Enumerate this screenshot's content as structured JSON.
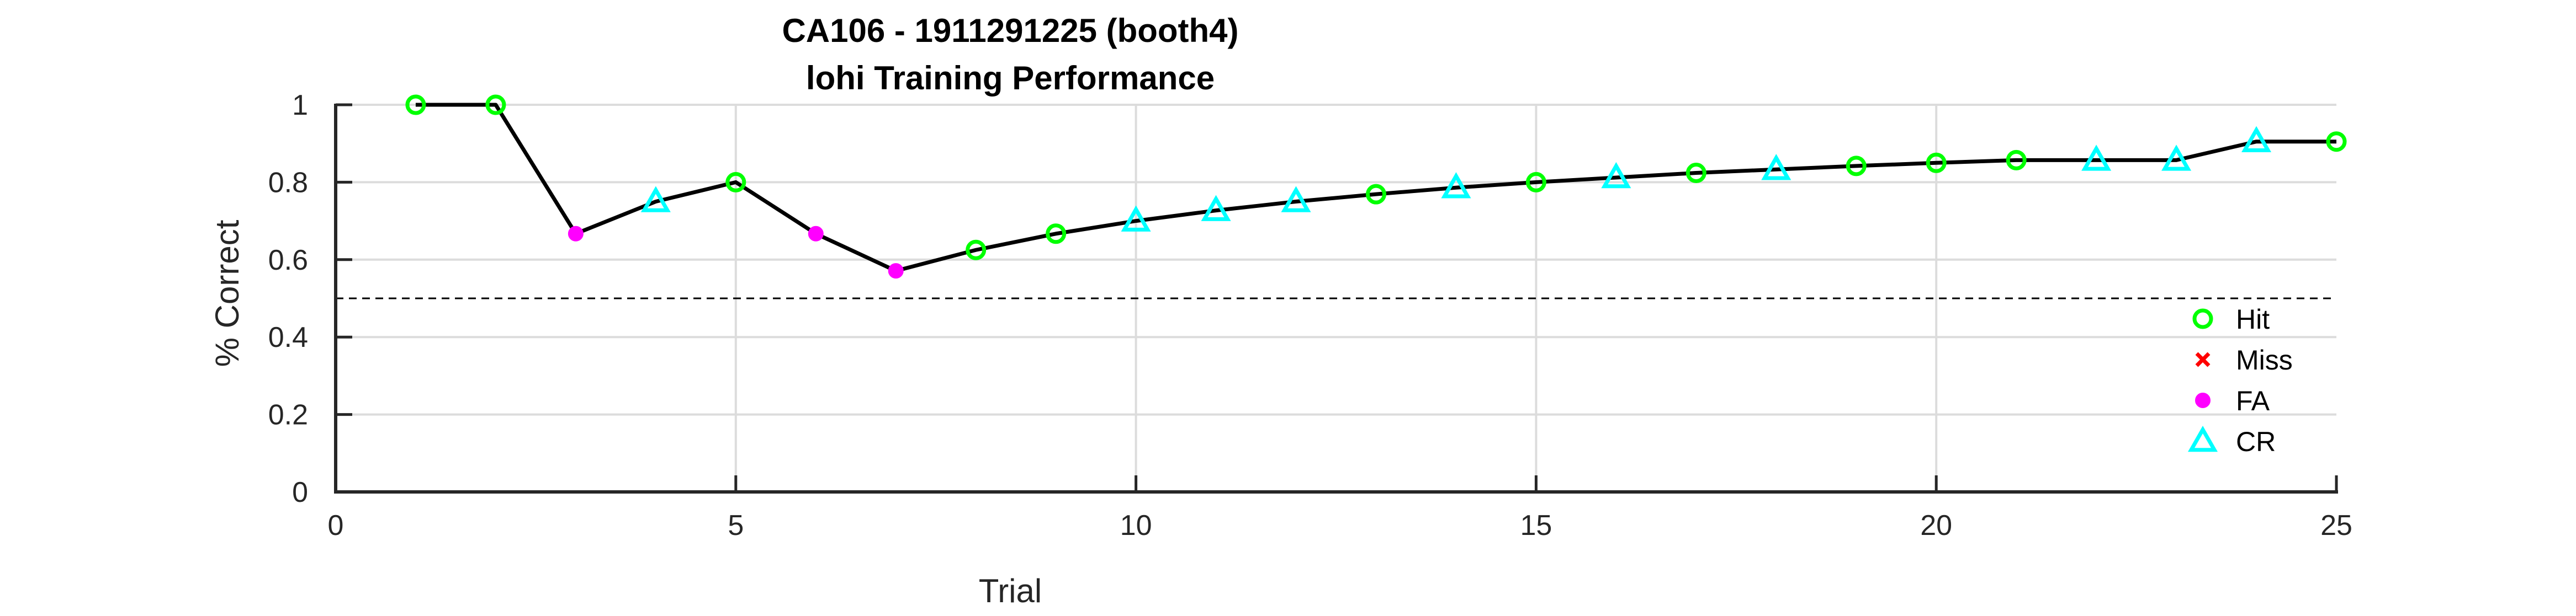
{
  "chart_data": {
    "type": "line",
    "title_line1": "CA106 - 1911291225 (booth4)",
    "title_line2": "lohi Training Performance",
    "xlabel": "Trial",
    "ylabel": "% Correct",
    "xlim": [
      0,
      25
    ],
    "ylim": [
      0,
      1
    ],
    "x_ticks": [
      0,
      5,
      10,
      15,
      20,
      25
    ],
    "y_ticks": [
      0,
      0.2,
      0.4,
      0.6,
      0.8,
      1
    ],
    "y_tick_labels": [
      "0",
      "0.2",
      "0.4",
      "0.6",
      "0.8",
      "1"
    ],
    "grid": true,
    "chance_line": 0.5,
    "legend_position": "bottom-right",
    "colors": {
      "line": "#000000",
      "hit": "#00ff00",
      "miss": "#ff0000",
      "fa": "#ff00ff",
      "cr": "#00ffff"
    },
    "legend": [
      {
        "key": "hit",
        "label": "Hit",
        "marker": "circle"
      },
      {
        "key": "miss",
        "label": "Miss",
        "marker": "x"
      },
      {
        "key": "fa",
        "label": "FA",
        "marker": "dot"
      },
      {
        "key": "cr",
        "label": "CR",
        "marker": "triangle"
      }
    ],
    "x": [
      1,
      2,
      3,
      4,
      5,
      6,
      7,
      8,
      9,
      10,
      11,
      12,
      13,
      14,
      15,
      16,
      17,
      18,
      19,
      20,
      21,
      22,
      23,
      24,
      25
    ],
    "values": [
      1.0,
      1.0,
      0.667,
      0.75,
      0.8,
      0.667,
      0.571,
      0.625,
      0.667,
      0.7,
      0.727,
      0.75,
      0.769,
      0.786,
      0.8,
      0.812,
      0.824,
      0.833,
      0.842,
      0.85,
      0.857,
      0.857,
      0.857,
      0.905,
      0.905
    ],
    "outcomes": [
      "hit",
      "hit",
      "fa",
      "cr",
      "hit",
      "fa",
      "fa",
      "hit",
      "hit",
      "cr",
      "cr",
      "cr",
      "hit",
      "cr",
      "hit",
      "cr",
      "hit",
      "cr",
      "hit",
      "hit",
      "hit",
      "cr",
      "cr",
      "cr",
      "hit"
    ]
  }
}
